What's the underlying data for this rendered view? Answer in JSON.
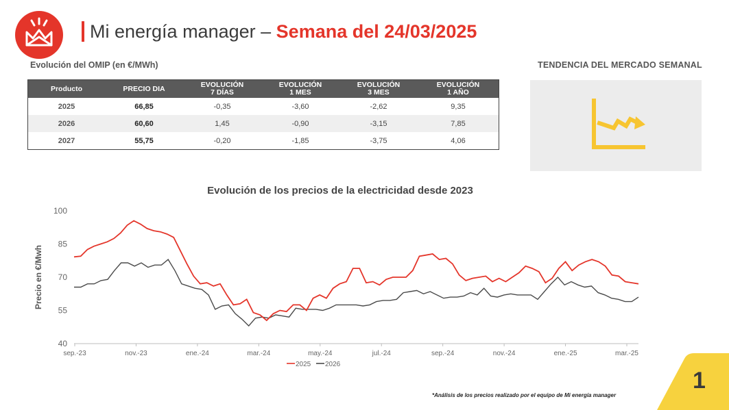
{
  "header": {
    "title_prefix": "Mi energía manager –",
    "title_bold": "Semana del 24/03/2025"
  },
  "table": {
    "title": "Evolución del OMIP (en €/MWh)",
    "headers": [
      [
        "Producto"
      ],
      [
        "PRECIO DIA"
      ],
      [
        "EVOLUCIÓN",
        "7 DÍAS"
      ],
      [
        "EVOLUCIÓN",
        "1 MES"
      ],
      [
        "EVOLUCIÓN",
        "3 MES"
      ],
      [
        "EVOLUCIÓN",
        "1 AÑO"
      ]
    ],
    "rows": [
      [
        "2025",
        "66,85",
        "-0,35",
        "-3,60",
        "-2,62",
        "9,35"
      ],
      [
        "2026",
        "60,60",
        "1,45",
        "-0,90",
        "-3,15",
        "7,85"
      ],
      [
        "2027",
        "55,75",
        "-0,20",
        "-1,85",
        "-3,75",
        "4,06"
      ]
    ]
  },
  "trend": {
    "title": "TENDENCIA DEL MERCADO SEMANAL",
    "icon": "trend-chart-icon",
    "color": "#f7c531"
  },
  "colors": {
    "brand": "#e4352a",
    "series_2025": "#e4352a",
    "series_2026": "#4a4a4a",
    "page_tab": "#f7d23e"
  },
  "chart_data": {
    "type": "line",
    "title": "Evolución de los precios de la electricidad desde 2023",
    "xlabel": "",
    "ylabel": "Precio en €/Mwh",
    "ylim": [
      40,
      100
    ],
    "yticks": [
      40,
      55,
      70,
      85,
      100
    ],
    "xtick_labels": [
      "sep.-23",
      "nov.-23",
      "ene.-24",
      "mar.-24",
      "may.-24",
      "jul.-24",
      "sep.-24",
      "nov.-24",
      "ene.-25",
      "mar.-25"
    ],
    "grid": false,
    "legend": "bottom-center",
    "series": [
      {
        "name": "2025",
        "values": [
          79.2,
          79.5,
          82.5,
          84,
          85,
          86,
          87.5,
          90,
          93.5,
          95.5,
          94,
          92,
          91,
          90.5,
          89.5,
          88,
          82,
          76,
          70.5,
          67,
          67.5,
          66,
          67,
          62,
          57.5,
          58,
          60,
          54,
          53,
          50.5,
          53.5,
          55,
          54.5,
          57.5,
          57.5,
          55,
          60.5,
          62,
          60.5,
          65,
          67,
          68,
          74,
          74,
          67.5,
          68,
          66.5,
          69,
          70,
          70,
          70,
          73,
          79.5,
          80,
          80.5,
          78,
          78.5,
          76,
          71,
          68.5,
          69.5,
          70,
          70.5,
          68,
          69.5,
          68,
          70,
          72,
          75,
          74,
          72.5,
          67.5,
          69.5,
          74,
          77,
          73,
          75.5,
          77,
          78,
          77,
          75,
          71,
          70.5,
          68,
          67.5,
          67
        ]
      },
      {
        "name": "2026",
        "values": [
          65.5,
          65.5,
          67,
          67,
          68.5,
          69,
          73,
          76.5,
          76.5,
          75,
          76.5,
          74.5,
          75.5,
          75.5,
          78,
          73,
          67,
          66,
          65,
          64.5,
          62,
          55.5,
          57,
          57.5,
          53.5,
          51,
          48,
          51.5,
          52,
          51.5,
          53,
          52.5,
          52,
          56,
          55.5,
          55.5,
          55.5,
          55,
          56,
          57.5,
          57.5,
          57.5,
          57.5,
          57,
          57.5,
          59,
          59.5,
          59.5,
          60,
          63,
          63.5,
          64,
          62.5,
          63.5,
          62,
          60.5,
          61,
          61,
          61.5,
          63,
          62,
          65,
          61.5,
          61,
          62,
          62.5,
          62,
          62,
          62,
          60,
          63.5,
          67,
          70,
          66.5,
          68,
          66.5,
          65.5,
          66,
          63,
          62,
          60.5,
          60,
          59,
          59,
          61
        ]
      }
    ]
  },
  "footnote": "*Análisis de los precios realizado por el equipo de Mi energía manager",
  "page_number": "1"
}
